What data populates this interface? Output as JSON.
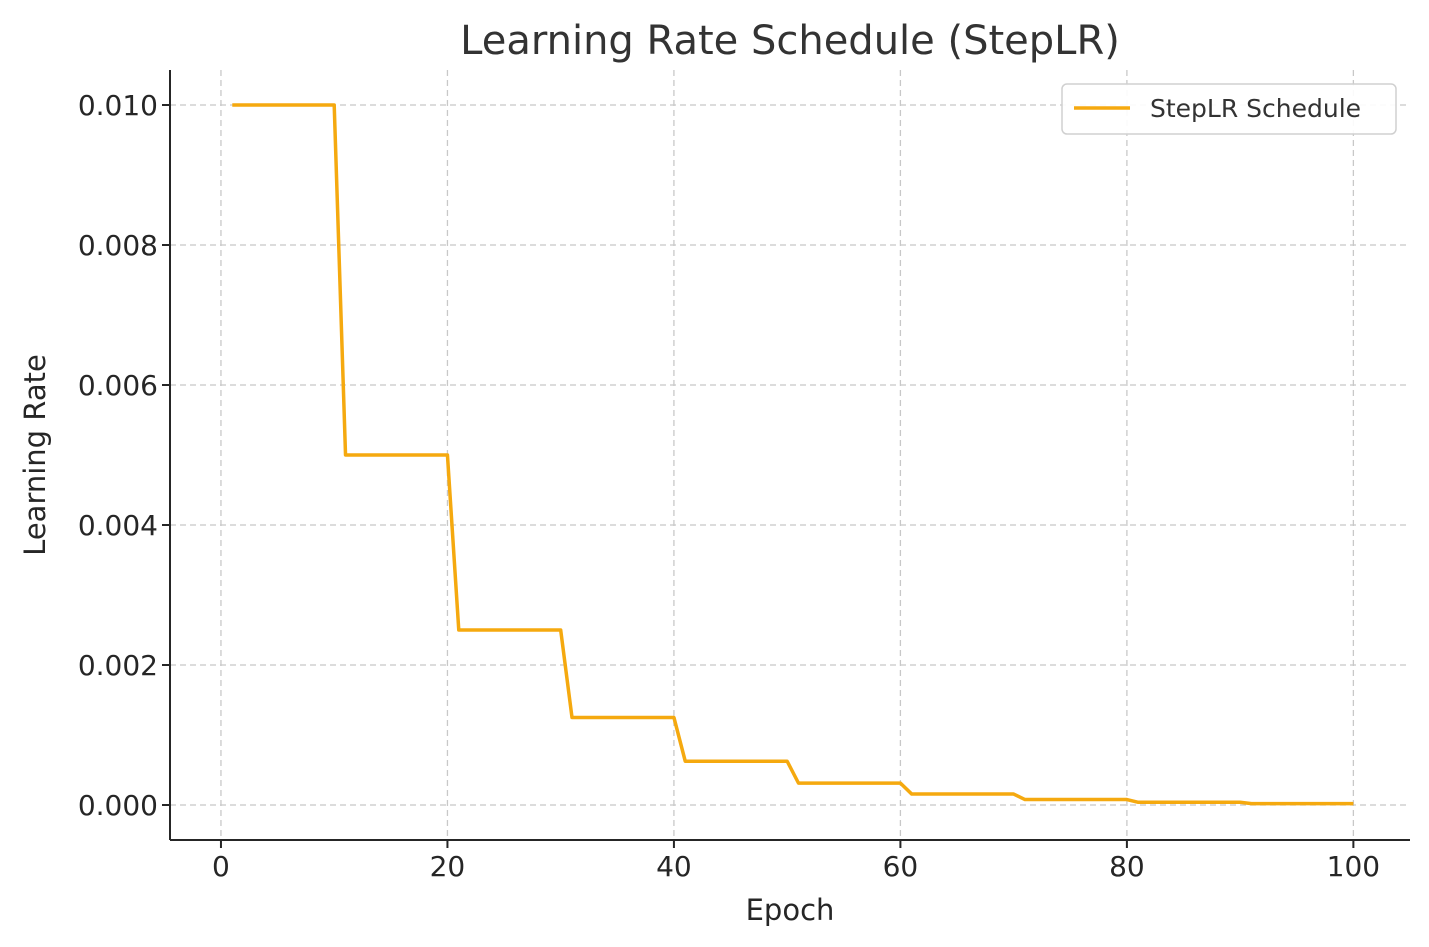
{
  "chart_data": {
    "type": "line",
    "title": "Learning Rate Schedule (StepLR)",
    "xlabel": "Epoch",
    "ylabel": "Learning Rate",
    "xlim": [
      -4.5,
      105
    ],
    "ylim": [
      -0.0005,
      0.0105
    ],
    "xticks": [
      0,
      20,
      40,
      60,
      80,
      100
    ],
    "xtick_labels": [
      "0",
      "20",
      "40",
      "60",
      "80",
      "100"
    ],
    "yticks": [
      0.0,
      0.002,
      0.004,
      0.006,
      0.008,
      0.01
    ],
    "ytick_labels": [
      "0.000",
      "0.002",
      "0.004",
      "0.006",
      "0.008",
      "0.010"
    ],
    "grid": true,
    "legend_position": "top-right",
    "series": [
      {
        "name": "StepLR Schedule",
        "color": "#f5a90f",
        "x": [
          1,
          10,
          11,
          20,
          21,
          30,
          31,
          40,
          41,
          50,
          51,
          60,
          61,
          70,
          71,
          80,
          81,
          90,
          91,
          100
        ],
        "y": [
          0.01,
          0.01,
          0.005,
          0.005,
          0.0025,
          0.0025,
          0.00125,
          0.00125,
          0.000625,
          0.000625,
          0.0003125,
          0.0003125,
          0.00015625,
          0.00015625,
          7.8125e-05,
          7.8125e-05,
          3.90625e-05,
          3.90625e-05,
          1.953125e-05,
          1.953125e-05
        ]
      }
    ]
  }
}
